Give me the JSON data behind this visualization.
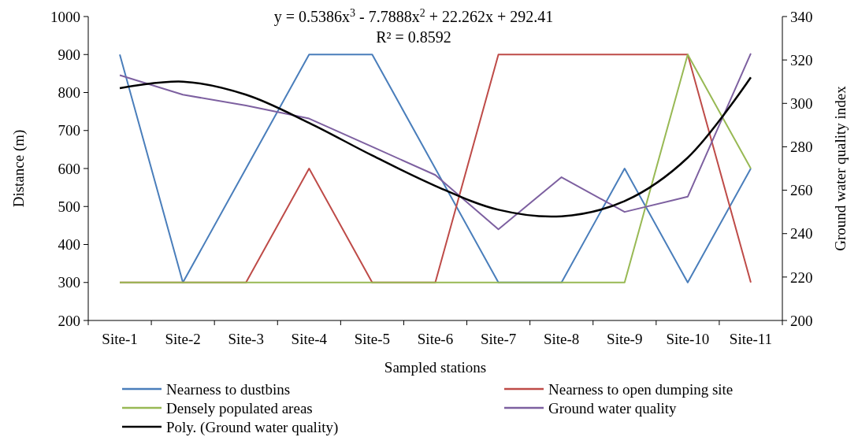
{
  "chart_data": {
    "type": "line",
    "xlabel": "Sampled stations",
    "ylabel": "Distance (m)",
    "y2label": "Ground water quality index",
    "categories": [
      "Site-1",
      "Site-2",
      "Site-3",
      "Site-4",
      "Site-5",
      "Site-6",
      "Site-7",
      "Site-8",
      "Site-9",
      "Site-10",
      "Site-11"
    ],
    "series": [
      {
        "name": "Nearness to dustbins",
        "color": "#4a7ebb",
        "values": [
          900,
          300,
          600,
          900,
          900,
          600,
          300,
          300,
          600,
          300,
          600
        ]
      },
      {
        "name": "Nearness to open dumping site",
        "color": "#be4b48",
        "values": [
          300,
          300,
          300,
          600,
          300,
          300,
          900,
          900,
          900,
          900,
          300
        ]
      },
      {
        "name": "Densely populated areas",
        "color": "#98b954",
        "values": [
          300,
          300,
          300,
          300,
          300,
          300,
          300,
          300,
          300,
          900,
          600
        ]
      },
      {
        "name": "Ground water quality",
        "color": "#7d60a0",
        "axis": "y2",
        "values": [
          313,
          304,
          299,
          293,
          280,
          267,
          242,
          266,
          250,
          257,
          323
        ]
      },
      {
        "name": "Poly. (Ground water quality)",
        "color": "#000000",
        "axis": "y2",
        "type": "line",
        "values": [
          307,
          310,
          304,
          291,
          276,
          262,
          251,
          248,
          255,
          275,
          312
        ]
      }
    ],
    "ylim": [
      200,
      1000
    ],
    "yticks": [
      200,
      300,
      400,
      500,
      600,
      700,
      800,
      900,
      1000
    ],
    "y2lim": [
      200,
      340
    ],
    "y2ticks": [
      200,
      220,
      240,
      260,
      280,
      300,
      320,
      340
    ],
    "annotations": [
      "y = 0.5386x$^{3}$ - 7.7888x$^{2}$ + 22.262x + 292.41",
      "R² = 0.8592"
    ],
    "legend": "bottom",
    "grid": false,
    "marker": "none",
    "line_style": "solid"
  }
}
